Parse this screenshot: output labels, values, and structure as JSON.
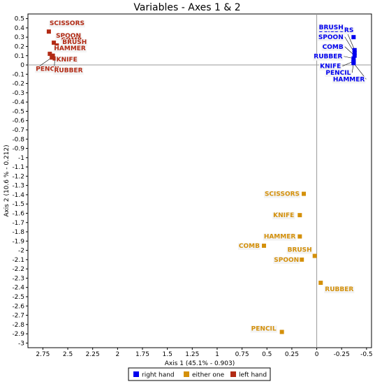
{
  "chart_data": {
    "type": "scatter",
    "title": "Variables - Axes 1 & 2",
    "xlabel": "Axis 1 (45.1% - 0.903)",
    "ylabel": "Axis 2 (10.6 % - 0.212)",
    "xlim": [
      2.9,
      -0.55
    ],
    "ylim": [
      -3.05,
      0.55
    ],
    "x_ticks": [
      "2.75",
      "2.5",
      "2.25",
      "2",
      "1.75",
      "1.5",
      "1.25",
      "1",
      "0.75",
      "0.5",
      "0.25",
      "0",
      "-0.25",
      "-0.5"
    ],
    "y_ticks": [
      "0.5",
      "0.4",
      "0.3",
      "0.2",
      "0.1",
      "0",
      "-0.1",
      "-0.2",
      "-0.3",
      "-0.4",
      "-0.5",
      "-0.6",
      "-0.7",
      "-0.8",
      "-0.9",
      "-1",
      "-1.1",
      "-1.2",
      "-1.3",
      "-1.4",
      "-1.5",
      "-1.6",
      "-1.7",
      "-1.8",
      "-1.9",
      "-2",
      "-2.1",
      "-2.2",
      "-2.3",
      "-2.4",
      "-2.5",
      "-2.6",
      "-2.7",
      "-2.8",
      "-2.9",
      "-3"
    ],
    "grid": false,
    "legend_position": "bottom",
    "series": [
      {
        "name": "right hand",
        "color": "#0000ee",
        "points": [
          {
            "label": "SCISSORS",
            "x": -0.37,
            "y": 0.3
          },
          {
            "label": "BRUSH",
            "x": -0.38,
            "y": 0.16
          },
          {
            "label": "SPOON",
            "x": -0.38,
            "y": 0.13
          },
          {
            "label": "COMB",
            "x": -0.38,
            "y": 0.1
          },
          {
            "label": "RUBBER",
            "x": -0.37,
            "y": 0.07
          },
          {
            "label": "KNIFE",
            "x": -0.37,
            "y": 0.04
          },
          {
            "label": "PENCIL",
            "x": -0.37,
            "y": 0.03
          },
          {
            "label": "HAMMER",
            "x": -0.37,
            "y": 0.02
          }
        ]
      },
      {
        "name": "either one",
        "color": "#d4900a",
        "points": [
          {
            "label": "SCISSORS",
            "x": 0.13,
            "y": -1.39
          },
          {
            "label": "KNIFE",
            "x": 0.17,
            "y": -1.62
          },
          {
            "label": "HAMMER",
            "x": 0.17,
            "y": -1.85
          },
          {
            "label": "COMB",
            "x": 0.53,
            "y": -1.95
          },
          {
            "label": "BRUSH",
            "x": 0.02,
            "y": -2.06
          },
          {
            "label": "SPOON",
            "x": 0.15,
            "y": -2.1
          },
          {
            "label": "RUBBER",
            "x": -0.04,
            "y": -2.35
          },
          {
            "label": "PENCIL",
            "x": 0.35,
            "y": -2.88
          }
        ]
      },
      {
        "name": "left hand",
        "color": "#b22a14",
        "points": [
          {
            "label": "SCISSORS",
            "x": 2.69,
            "y": 0.36
          },
          {
            "label": "SPOON",
            "x": 2.64,
            "y": 0.24
          },
          {
            "label": "COMB",
            "x": 2.61,
            "y": 0.21
          },
          {
            "label": "BRUSH",
            "x": 2.59,
            "y": 0.18
          },
          {
            "label": "HAMMER",
            "x": 2.68,
            "y": 0.12
          },
          {
            "label": "KNIFE",
            "x": 2.65,
            "y": 0.1
          },
          {
            "label": "PENCIL",
            "x": 2.66,
            "y": 0.08
          },
          {
            "label": "RUBBER",
            "x": 2.63,
            "y": 0.07
          }
        ]
      }
    ]
  }
}
